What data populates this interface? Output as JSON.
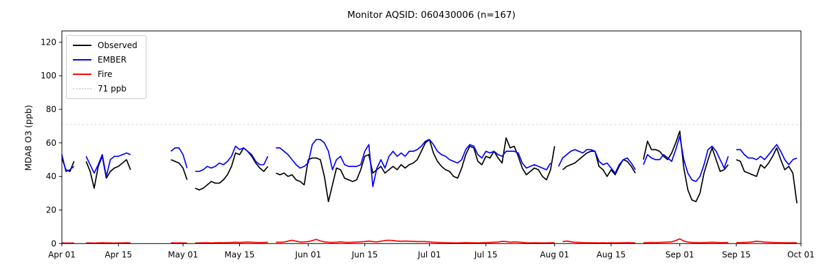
{
  "figure": {
    "background": "#ffffff",
    "title": "Monitor AQSID: 060430006 (n=167)"
  },
  "chart_data": {
    "type": "line",
    "title": "Monitor AQSID: 060430006 (n=167)",
    "xlabel": "",
    "ylabel": "MDA8 O3 (ppb)",
    "ylim": [
      0,
      126.7
    ],
    "yticks": [
      0,
      20,
      40,
      60,
      80,
      100,
      120
    ],
    "x_tick_labels": [
      "Apr 01",
      "Apr 15",
      "May 01",
      "May 15",
      "Jun 01",
      "Jun 15",
      "Jul 01",
      "Jul 15",
      "Aug 01",
      "Aug 15",
      "Sep 01",
      "Sep 15",
      "Oct 01"
    ],
    "x_tick_days": [
      0,
      14,
      30,
      44,
      61,
      75,
      91,
      105,
      122,
      136,
      153,
      167,
      183
    ],
    "x_range_days": [
      0,
      183
    ],
    "x_unit": "daily values, Apr 01 through Sep 30; gaps are missing observations",
    "grid": false,
    "legend_position": "upper left",
    "reference_line": {
      "value": 71,
      "label": "71 ppb",
      "color": "#d3d3d3",
      "style": "dotted"
    },
    "legend": [
      {
        "label": "Observed",
        "color": "#000000",
        "style": "solid"
      },
      {
        "label": "EMBER",
        "color": "#0000ff",
        "style": "solid"
      },
      {
        "label": "Fire",
        "color": "#ff0000",
        "style": "solid"
      },
      {
        "label": "71 ppb",
        "color": "#d3d3d3",
        "style": "dotted"
      }
    ],
    "series": [
      {
        "name": "Observed",
        "color": "#000000",
        "values": [
          51,
          44,
          43,
          49,
          null,
          null,
          49,
          43,
          33,
          46,
          52,
          39,
          43,
          45,
          46,
          48,
          50,
          44,
          null,
          null,
          null,
          null,
          null,
          null,
          null,
          null,
          null,
          50,
          49,
          48,
          45,
          38,
          null,
          33,
          32,
          33,
          35,
          37,
          36,
          36,
          38,
          41,
          46,
          54,
          53,
          57,
          55,
          52,
          48,
          45,
          43,
          46,
          null,
          42,
          41,
          42,
          40,
          41,
          38,
          37,
          35,
          50,
          51,
          51,
          50,
          40,
          25,
          35,
          45,
          44,
          39,
          38,
          37,
          38,
          44,
          52,
          53,
          42,
          44,
          46,
          42,
          44,
          46,
          44,
          47,
          45,
          47,
          48,
          50,
          55,
          60,
          62,
          54,
          49,
          46,
          44,
          43,
          40,
          39,
          45,
          53,
          58,
          57,
          49,
          47,
          52,
          51,
          55,
          51,
          48,
          63,
          57,
          58,
          52,
          45,
          41,
          43,
          45,
          44,
          40,
          38,
          44,
          58,
          null,
          44,
          46,
          47,
          48,
          50,
          52,
          54,
          55,
          55,
          46,
          44,
          40,
          44,
          41,
          46,
          50,
          49,
          46,
          42,
          null,
          50,
          61,
          56,
          56,
          55,
          52,
          50,
          54,
          60,
          67,
          45,
          32,
          26,
          25,
          30,
          42,
          50,
          57,
          50,
          43,
          44,
          47,
          null,
          50,
          49,
          43,
          42,
          41,
          40,
          47,
          45,
          48,
          52,
          57,
          50,
          44,
          46,
          42,
          24
        ]
      },
      {
        "name": "EMBER",
        "color": "#0000ff",
        "values": [
          53,
          43,
          44,
          46,
          null,
          null,
          52,
          47,
          42,
          47,
          53,
          40,
          50,
          52,
          52,
          53,
          54,
          53,
          null,
          null,
          null,
          null,
          null,
          null,
          null,
          null,
          null,
          55,
          57,
          57,
          53,
          45,
          null,
          43,
          43,
          44,
          46,
          45,
          46,
          48,
          47,
          49,
          52,
          58,
          56,
          57,
          55,
          53,
          49,
          47,
          47,
          52,
          null,
          57,
          57,
          55,
          53,
          50,
          47,
          45,
          46,
          48,
          59,
          62,
          62,
          60,
          55,
          44,
          50,
          52,
          47,
          46,
          46,
          46,
          47,
          55,
          59,
          34,
          45,
          50,
          45,
          52,
          55,
          52,
          54,
          52,
          55,
          55,
          56,
          58,
          61,
          62,
          59,
          55,
          53,
          52,
          50,
          49,
          48,
          50,
          56,
          59,
          58,
          53,
          51,
          55,
          54,
          55,
          53,
          52,
          55,
          55,
          55,
          54,
          48,
          45,
          46,
          47,
          46,
          45,
          44,
          48,
          null,
          46,
          51,
          53,
          55,
          56,
          55,
          54,
          56,
          56,
          55,
          49,
          47,
          48,
          45,
          42,
          47,
          50,
          51,
          48,
          44,
          null,
          47,
          53,
          51,
          50,
          50,
          53,
          51,
          49,
          56,
          64,
          50,
          42,
          38,
          37,
          40,
          47,
          56,
          58,
          55,
          50,
          45,
          52,
          null,
          56,
          56,
          53,
          51,
          51,
          50,
          52,
          50,
          53,
          56,
          59,
          55,
          50,
          47,
          50,
          51
        ]
      },
      {
        "name": "Fire",
        "color": "#ff0000",
        "values": [
          0.4,
          0.3,
          0.3,
          0.4,
          null,
          null,
          0.4,
          0.4,
          0.3,
          0.4,
          0.5,
          0.4,
          0.4,
          0.3,
          0.4,
          0.4,
          0.5,
          0.4,
          null,
          null,
          null,
          null,
          null,
          null,
          null,
          null,
          null,
          0.5,
          0.4,
          0.4,
          0.4,
          0.3,
          null,
          0.4,
          0.4,
          0.5,
          0.5,
          0.4,
          0.5,
          0.6,
          0.5,
          0.6,
          0.7,
          0.8,
          0.7,
          0.8,
          0.9,
          0.8,
          0.7,
          0.6,
          0.7,
          0.8,
          null,
          0.8,
          0.8,
          0.9,
          1.5,
          2.0,
          1.4,
          0.9,
          1.0,
          1.2,
          1.8,
          2.5,
          1.6,
          1.0,
          0.8,
          0.7,
          0.8,
          1.0,
          0.8,
          0.7,
          0.8,
          0.9,
          1.0,
          1.2,
          1.5,
          1.2,
          1.0,
          1.4,
          1.8,
          2.0,
          1.8,
          1.5,
          1.4,
          1.5,
          1.4,
          1.3,
          1.2,
          1.2,
          1.2,
          1.0,
          0.8,
          0.7,
          0.6,
          0.5,
          0.5,
          0.4,
          0.4,
          0.5,
          0.6,
          0.5,
          0.5,
          0.4,
          0.5,
          0.6,
          0.7,
          0.8,
          0.9,
          1.3,
          1.2,
          0.8,
          1.0,
          0.9,
          0.7,
          0.5,
          0.4,
          0.5,
          0.4,
          0.4,
          0.4,
          0.5,
          0.6,
          null,
          1.2,
          1.5,
          1.1,
          0.8,
          0.7,
          0.6,
          0.5,
          0.5,
          0.5,
          0.4,
          0.5,
          0.4,
          0.5,
          0.4,
          0.5,
          0.5,
          0.6,
          0.5,
          0.4,
          null,
          0.5,
          0.6,
          0.7,
          0.6,
          0.7,
          0.8,
          0.9,
          1.0,
          1.8,
          2.8,
          1.5,
          0.9,
          0.7,
          0.6,
          0.5,
          0.6,
          0.7,
          0.8,
          0.7,
          0.6,
          0.6,
          0.7,
          null,
          0.6,
          0.6,
          0.7,
          0.8,
          1.0,
          1.4,
          1.2,
          0.9,
          0.8,
          0.7,
          0.6,
          0.6,
          0.5,
          0.5,
          0.5,
          0.5
        ]
      }
    ]
  }
}
